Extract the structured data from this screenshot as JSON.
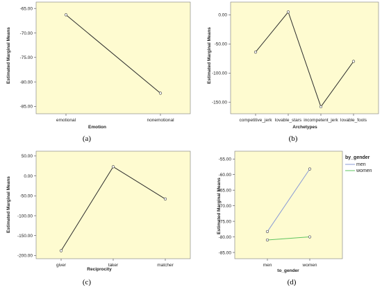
{
  "figure": {
    "colors": {
      "plot_bg": "#fefbd0",
      "line": "#2b2b2b",
      "men": "#8a9bd6",
      "women": "#5ec45e"
    }
  },
  "chart_data": [
    {
      "type": "line",
      "panel_label": "(a)",
      "ylabel": "Estimated Marginal Means",
      "xlabel": "Emotion",
      "categories": [
        "emotional",
        "nonemotional"
      ],
      "series": [
        {
          "values": [
            -66.3,
            -82.3
          ]
        }
      ],
      "ylim": [
        -86.5,
        -63.7
      ],
      "yticks": [
        -65.0,
        -70.0,
        -75.0,
        -80.0,
        -85.0
      ],
      "ytick_labels": [
        "-65.00",
        "-70.00",
        "-75.00",
        "-80.00",
        "-85.00"
      ]
    },
    {
      "type": "line",
      "panel_label": "(b)",
      "ylabel": "Estimated Marginal Means",
      "xlabel": "Archetypes",
      "categories": [
        "competitive_jerk",
        "lovable_stars",
        "incompetent_jerk",
        "lovable_fools"
      ],
      "series": [
        {
          "values": [
            -64,
            5,
            -158,
            -80
          ]
        }
      ],
      "ylim": [
        -170,
        22
      ],
      "yticks": [
        0,
        -50,
        -100,
        -150
      ],
      "ytick_labels": [
        "0.00",
        "-50.00",
        "-100.00",
        "-150.00"
      ]
    },
    {
      "type": "line",
      "panel_label": "(c)",
      "ylabel": "Estimated Marginal Means",
      "xlabel": "Reciprocity",
      "categories": [
        "giver",
        "taker",
        "matcher"
      ],
      "series": [
        {
          "values": [
            -188,
            23,
            -58
          ]
        }
      ],
      "ylim": [
        -208,
        62
      ],
      "yticks": [
        50,
        0,
        -50,
        -100,
        -150,
        -200
      ],
      "ytick_labels": [
        "50.00",
        "0.00",
        "-50.00",
        "-100.00",
        "-150.00",
        "-200.00"
      ]
    },
    {
      "type": "line",
      "panel_label": "(d)",
      "ylabel": "Estimated Marginal Means",
      "xlabel": "to_gender",
      "legend_title": "by_gender",
      "legend_position": "right",
      "categories": [
        "men",
        "women"
      ],
      "series": [
        {
          "name": "men",
          "values": [
            -78.3,
            -58.2
          ]
        },
        {
          "name": "women",
          "values": [
            -81.0,
            -80.0
          ]
        }
      ],
      "ylim": [
        -87,
        -52.5
      ],
      "yticks": [
        -55,
        -60,
        -65,
        -70,
        -75,
        -80,
        -85
      ],
      "ytick_labels": [
        "-55.00",
        "-60.00",
        "-65.00",
        "-70.00",
        "-75.00",
        "-80.00",
        "-85.00"
      ]
    }
  ]
}
